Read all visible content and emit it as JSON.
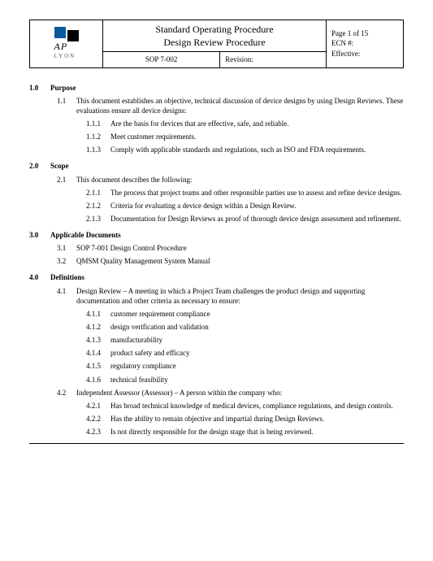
{
  "header": {
    "logo_ap": "AP",
    "logo_lyon": "LYON",
    "title1": "Standard Operating Procedure",
    "title2": "Design Review Procedure",
    "sop": "SOP 7-002",
    "revision_label": "Revision:",
    "page": "Page  1 of 15",
    "ecn": "ECN #:",
    "effective": "Effective:"
  },
  "sections": [
    {
      "num": "1.0",
      "title": "Purpose",
      "items": [
        {
          "num": "1.1",
          "text": "This document establishes an objective, technical discussion of device designs by using Design Reviews.  These evaluations ensure all device designs:",
          "sub": [
            {
              "num": "1.1.1",
              "text": "Are the basis for devices that are effective, safe, and reliable."
            },
            {
              "num": "1.1.2",
              "text": "Meet customer requirements."
            },
            {
              "num": "1.1.3",
              "text": "Comply with applicable standards and regulations, such as ISO and FDA requirements."
            }
          ]
        }
      ]
    },
    {
      "num": "2.0",
      "title": "Scope",
      "items": [
        {
          "num": "2.1",
          "text": "This document describes the following:",
          "sub": [
            {
              "num": "2.1.1",
              "text": "The process that project teams and other responsible parties use to assess and refine device designs."
            },
            {
              "num": "2.1.2",
              "text": "Criteria for evaluating a device design within a Design Review."
            },
            {
              "num": "2.1.3",
              "text": "Documentation for Design Reviews as proof of thorough device design assessment and refinement."
            }
          ]
        }
      ]
    },
    {
      "num": "3.0",
      "title": "Applicable Documents",
      "items": [
        {
          "num": "3.1",
          "text": "SOP 7-001 Design Control Procedure",
          "sub": []
        },
        {
          "num": "3.2",
          "text": "QMSM Quality Management System Manual",
          "sub": []
        }
      ]
    },
    {
      "num": "4.0",
      "title": "Definitions",
      "items": [
        {
          "num": "4.1",
          "text": "Design Review – A meeting in which a Project Team challenges the product design and supporting documentation and other criteria as necessary to ensure:",
          "sub": [
            {
              "num": "4.1.1",
              "text": "customer requirement compliance"
            },
            {
              "num": "4.1.2",
              "text": "design verification and validation"
            },
            {
              "num": "4.1.3",
              "text": "manufacturability"
            },
            {
              "num": "4.1.4",
              "text": "product safety and efficacy"
            },
            {
              "num": "4.1.5",
              "text": "regulatory compliance"
            },
            {
              "num": "4.1.6",
              "text": "technical feasibility"
            }
          ]
        },
        {
          "num": "4.2",
          "text": "Independent Assessor (Assessor) – A person within the company who:",
          "sub": [
            {
              "num": "4.2.1",
              "text": "Has broad technical knowledge of medical devices, compliance regulations, and design controls."
            },
            {
              "num": "4.2.2",
              "text": "Has the ability to remain objective and impartial during Design Reviews."
            },
            {
              "num": "4.2.3",
              "text": "Is not directly responsible for the design stage that is being reviewed."
            }
          ]
        }
      ]
    }
  ],
  "colors": {
    "logo_blue": "#0b5a9e",
    "text": "#000000",
    "background": "#ffffff"
  }
}
